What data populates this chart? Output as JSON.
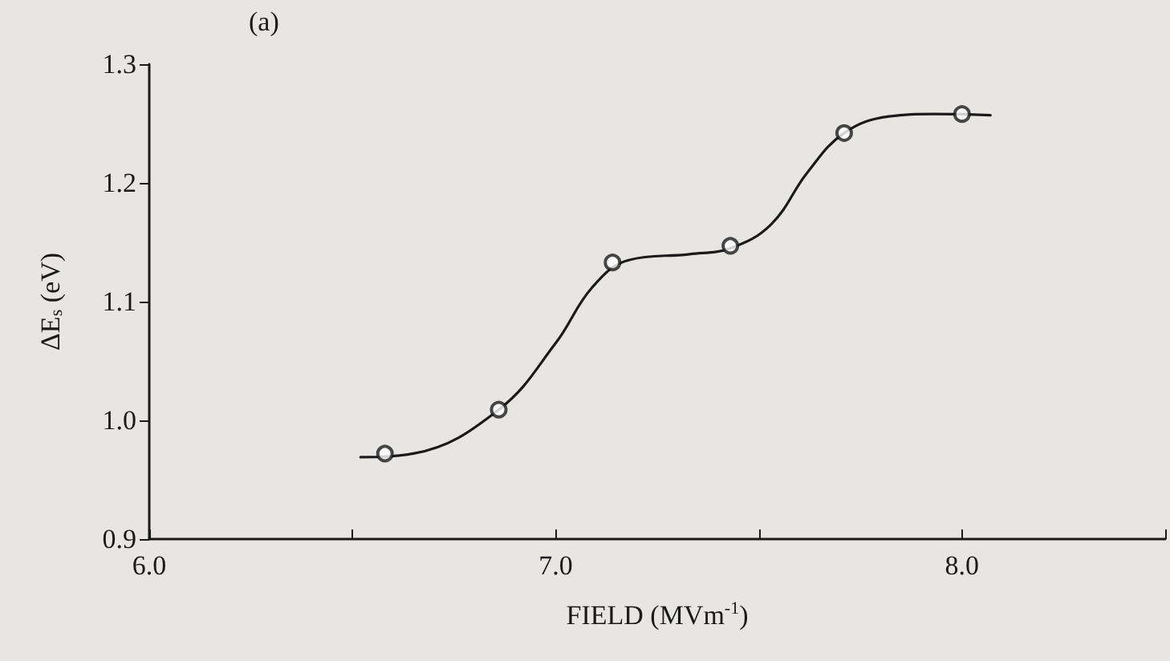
{
  "chart_data": {
    "type": "scatter",
    "xlabel": "FIELD (MVm$^{-1}$)",
    "ylabel": "ΔE$_{s}$ (eV)",
    "annotations": [
      "(a)"
    ],
    "xlim": [
      6.0,
      8.5
    ],
    "xticks": [
      {
        "value": 6,
        "label": "6.0"
      },
      {
        "value": 6.5,
        "label": null
      },
      {
        "value": 7,
        "label": "7.0"
      },
      {
        "value": 7.5,
        "label": null
      },
      {
        "value": 8,
        "label": "8.0"
      },
      {
        "value": 8.5,
        "label": null
      }
    ],
    "ylim": [
      0.9,
      1.3
    ],
    "yticks": [
      0.9,
      {
        "value": 1,
        "label": "1.0"
      },
      1.1,
      1.2,
      1.3
    ],
    "grid": false,
    "marker": "circle",
    "series": [
      {
        "color": "#1a1a1a",
        "x": [
          6.58,
          6.86,
          7.14,
          7.43,
          7.71,
          8.0
        ],
        "values": [
          0.972,
          1.009,
          1.133,
          1.147,
          1.242,
          1.258
        ]
      },
      {
        "type": "line",
        "color": "#1a1a1a",
        "marker": "none",
        "line_style": "solid",
        "x": [
          6.52,
          6.65,
          6.86,
          7.0,
          7.09,
          7.18,
          7.33,
          7.43,
          7.53,
          7.62,
          7.71,
          7.82,
          7.93,
          8.07
        ],
        "values": [
          0.969,
          0.972,
          1.009,
          1.065,
          1.112,
          1.135,
          1.14,
          1.145,
          1.165,
          1.209,
          1.242,
          1.256,
          1.258,
          1.257
        ]
      }
    ]
  }
}
